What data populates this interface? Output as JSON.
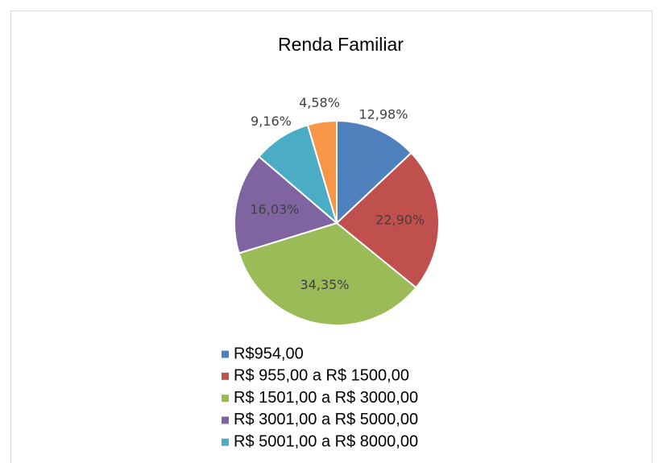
{
  "chart_data": {
    "type": "pie",
    "title": "Renda Familiar",
    "categories": [
      "R$954,00",
      "R$ 955,00 a R$ 1500,00",
      "R$ 1501,00 a R$ 3000,00",
      "R$ 3001,00 a R$ 5000,00",
      "R$ 5001,00 a R$ 8000,00",
      null
    ],
    "values": [
      12.98,
      22.9,
      34.35,
      16.03,
      9.16,
      4.58
    ],
    "value_labels": [
      "12,98%",
      "22,90%",
      "34,35%",
      "16,03%",
      "9,16%",
      "4,58%"
    ],
    "colors": [
      "#4f81bd",
      "#c0504d",
      "#9bbb59",
      "#8064a2",
      "#4bacc6",
      "#f79646"
    ],
    "legend": "bottom"
  }
}
